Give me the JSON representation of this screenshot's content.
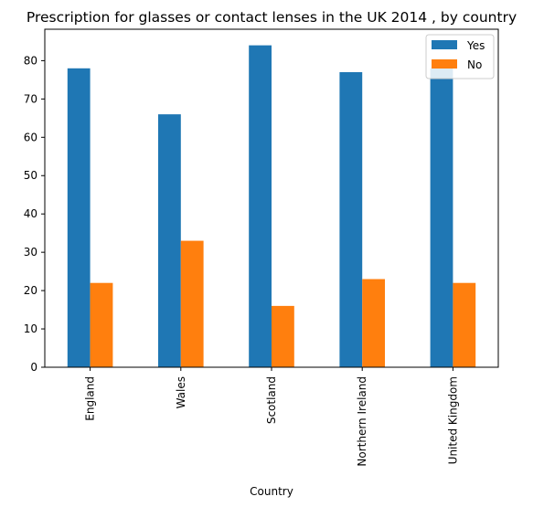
{
  "chart_data": {
    "type": "bar",
    "title": "Prescription for glasses or contact lenses in the UK 2014 , by country",
    "xlabel": "Country",
    "ylabel": "",
    "categories": [
      "England",
      "Wales",
      "Scotland",
      "Northern Ireland",
      "United Kingdom"
    ],
    "series": [
      {
        "name": "Yes",
        "values": [
          78,
          66,
          84,
          77,
          78
        ],
        "color": "#1f77b4"
      },
      {
        "name": "No",
        "values": [
          22,
          33,
          16,
          23,
          22
        ],
        "color": "#ff7f0e"
      }
    ],
    "ylim": [
      0,
      88.2
    ],
    "yticks": [
      0,
      10,
      20,
      30,
      40,
      50,
      60,
      70,
      80
    ],
    "grid": false,
    "legend_position": "top-right"
  }
}
